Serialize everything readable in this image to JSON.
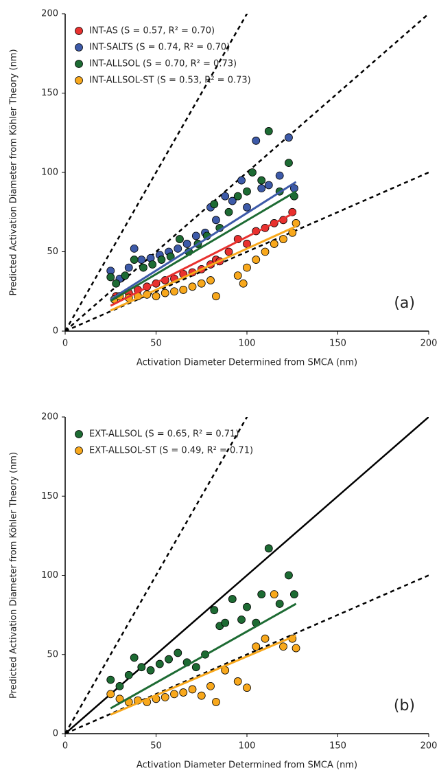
{
  "chart_data": [
    {
      "type": "scatter",
      "xlabel": "Activation Diameter Determined from SMCA (nm)",
      "ylabel": "Predicted Activation Diameter from Köhler Theory (nm)",
      "xlim": [
        0,
        200
      ],
      "ylim": [
        0,
        200
      ],
      "xticks": [
        0,
        50,
        100,
        150,
        200
      ],
      "yticks": [
        0,
        50,
        100,
        150,
        200
      ],
      "annotation": "(a)",
      "reference_lines": [
        {
          "slope": 2,
          "style": "dashed"
        },
        {
          "slope": 1,
          "style": "dashed"
        },
        {
          "slope": 0.5,
          "style": "dashed"
        }
      ],
      "series": [
        {
          "name": "INT-AS (S = 0.57, R² = 0.70)",
          "color": "#e8312f",
          "x": [
            28,
            35,
            40,
            45,
            50,
            55,
            60,
            65,
            70,
            75,
            80,
            83,
            85,
            90,
            95,
            100,
            105,
            110,
            115,
            120,
            125
          ],
          "values": [
            22,
            24,
            26,
            28,
            30,
            32,
            33,
            36,
            37,
            39,
            42,
            45,
            44,
            50,
            58,
            55,
            63,
            65,
            68,
            70,
            75
          ],
          "fit": {
            "x": [
              25,
              127
            ],
            "values": [
              16,
              75
            ]
          }
        },
        {
          "name": "INT-SALTS (S = 0.74, R² = 0.70)",
          "color": "#3d5aa8",
          "x": [
            25,
            30,
            35,
            38,
            42,
            47,
            52,
            57,
            62,
            67,
            72,
            77,
            80,
            83,
            88,
            92,
            97,
            100,
            105,
            108,
            112,
            118,
            123,
            126
          ],
          "values": [
            38,
            33,
            40,
            52,
            45,
            46,
            48,
            50,
            52,
            55,
            60,
            62,
            78,
            70,
            85,
            82,
            95,
            78,
            120,
            90,
            92,
            98,
            122,
            90
          ],
          "fit": {
            "x": [
              25,
              127
            ],
            "values": [
              20,
              94
            ]
          }
        },
        {
          "name": "INT-ALLSOL (S = 0.70, R² = 0.73)",
          "color": "#1d6b33",
          "x": [
            25,
            28,
            33,
            38,
            43,
            48,
            53,
            58,
            63,
            68,
            73,
            78,
            82,
            85,
            90,
            95,
            100,
            103,
            108,
            112,
            118,
            123,
            126
          ],
          "values": [
            34,
            30,
            35,
            45,
            40,
            42,
            45,
            47,
            58,
            50,
            55,
            60,
            80,
            65,
            75,
            85,
            88,
            100,
            95,
            126,
            88,
            106,
            85
          ],
          "fit": {
            "x": [
              25,
              127
            ],
            "values": [
              19,
              88
            ]
          }
        },
        {
          "name": "INT-ALLSOL-ST (S = 0.53, R² = 0.73)",
          "color": "#f8a81c",
          "x": [
            27,
            30,
            35,
            40,
            45,
            50,
            55,
            60,
            65,
            70,
            75,
            80,
            83,
            95,
            98,
            100,
            105,
            110,
            115,
            120,
            125,
            127
          ],
          "values": [
            20,
            22,
            21,
            22,
            23,
            22,
            24,
            25,
            26,
            28,
            30,
            32,
            22,
            35,
            30,
            40,
            45,
            50,
            55,
            58,
            62,
            68
          ],
          "fit": {
            "x": [
              25,
              127
            ],
            "values": [
              13,
              66
            ]
          }
        }
      ]
    },
    {
      "type": "scatter",
      "xlabel": "Activation Diameter Determined from SMCA (nm)",
      "ylabel": "Predicted Activation Diameter from Köhler Theory (nm)",
      "xlim": [
        0,
        200
      ],
      "ylim": [
        0,
        200
      ],
      "xticks": [
        0,
        50,
        100,
        150,
        200
      ],
      "yticks": [
        0,
        50,
        100,
        150,
        200
      ],
      "annotation": "(b)",
      "reference_lines": [
        {
          "slope": 2,
          "style": "dashed"
        },
        {
          "slope": 1,
          "style": "solid"
        },
        {
          "slope": 0.5,
          "style": "dashed"
        }
      ],
      "series": [
        {
          "name": "EXT-ALLSOL (S = 0.65, R² = 0.71)",
          "color": "#1d6b33",
          "x": [
            25,
            30,
            35,
            38,
            42,
            47,
            52,
            57,
            62,
            67,
            72,
            77,
            82,
            85,
            88,
            92,
            97,
            100,
            105,
            108,
            112,
            118,
            123,
            126
          ],
          "values": [
            34,
            30,
            37,
            48,
            42,
            40,
            44,
            47,
            51,
            45,
            42,
            50,
            78,
            68,
            70,
            85,
            72,
            80,
            70,
            88,
            117,
            82,
            100,
            88
          ],
          "fit": {
            "x": [
              25,
              127
            ],
            "values": [
              16,
              82
            ]
          }
        },
        {
          "name": "EXT-ALLSOL-ST (S = 0.49, R² = 0.71)",
          "color": "#f8a81c",
          "x": [
            25,
            30,
            35,
            40,
            45,
            50,
            55,
            60,
            65,
            70,
            75,
            80,
            83,
            88,
            95,
            100,
            105,
            110,
            115,
            120,
            125,
            127
          ],
          "values": [
            25,
            22,
            20,
            21,
            20,
            22,
            23,
            25,
            26,
            28,
            24,
            30,
            20,
            40,
            33,
            29,
            55,
            60,
            88,
            55,
            60,
            54
          ],
          "fit": {
            "x": [
              25,
              127
            ],
            "values": [
              12,
              62
            ]
          }
        }
      ]
    }
  ]
}
